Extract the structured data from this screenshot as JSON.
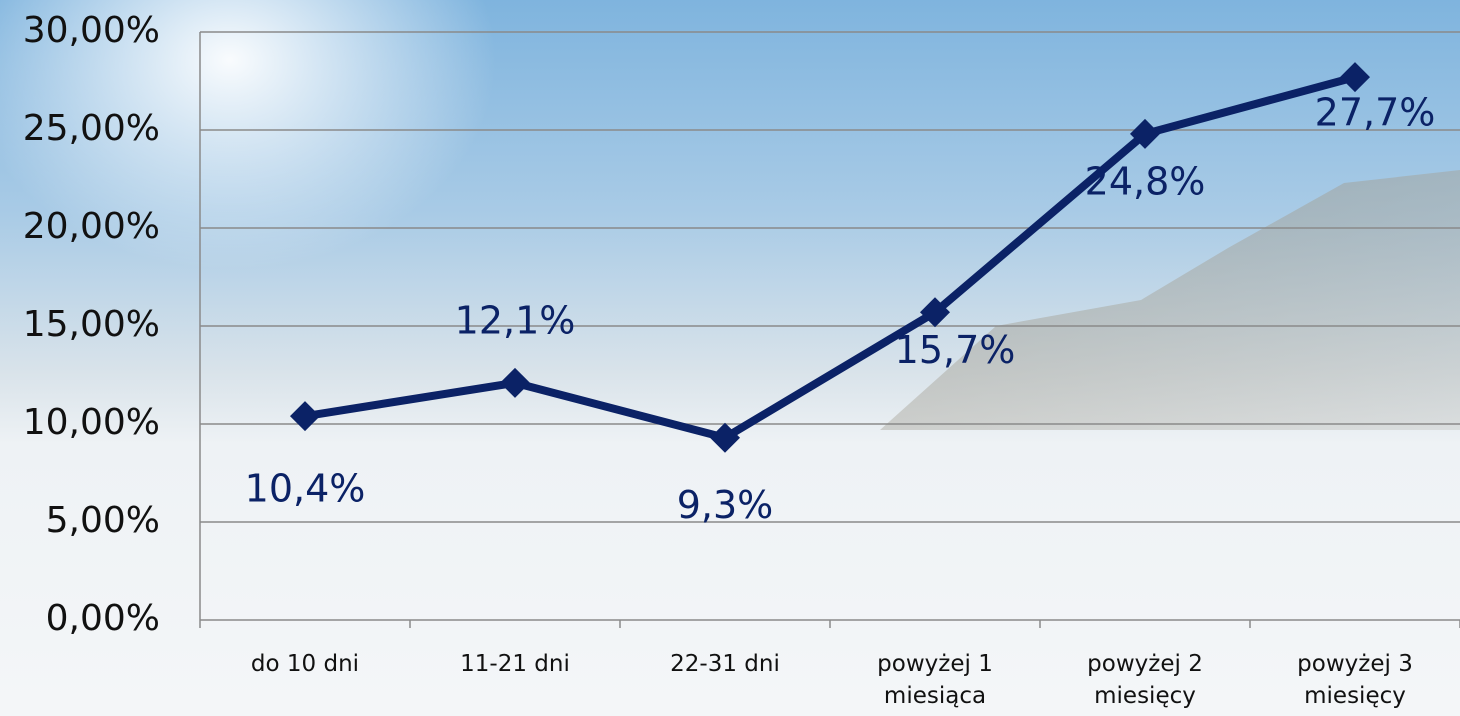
{
  "chart_data": {
    "type": "line",
    "categories": [
      "do 10 dni",
      "11-21 dni",
      "22-31 dni",
      "powyżej 1 miesiąca",
      "powyżej 2 miesięcy",
      "powyżej 3 miesięcy"
    ],
    "series": [
      {
        "color": "#0b2266",
        "values": [
          10.4,
          12.1,
          9.3,
          15.7,
          24.8,
          27.7
        ],
        "value_labels": [
          "10,4%",
          "12,1%",
          "9,3%",
          "15,7%",
          "24,8%",
          "27,7%"
        ]
      }
    ],
    "ylim": [
      0,
      30
    ],
    "yticks": [
      {
        "value": 0,
        "label": "0,00%"
      },
      {
        "value": 5,
        "label": "5,00%"
      },
      {
        "value": 10,
        "label": "10,00%"
      },
      {
        "value": 15,
        "label": "15,00%"
      },
      {
        "value": 20,
        "label": "20,00%"
      },
      {
        "value": 25,
        "label": "25,00%"
      },
      {
        "value": 30,
        "label": "30,00%"
      }
    ],
    "grid": true
  }
}
